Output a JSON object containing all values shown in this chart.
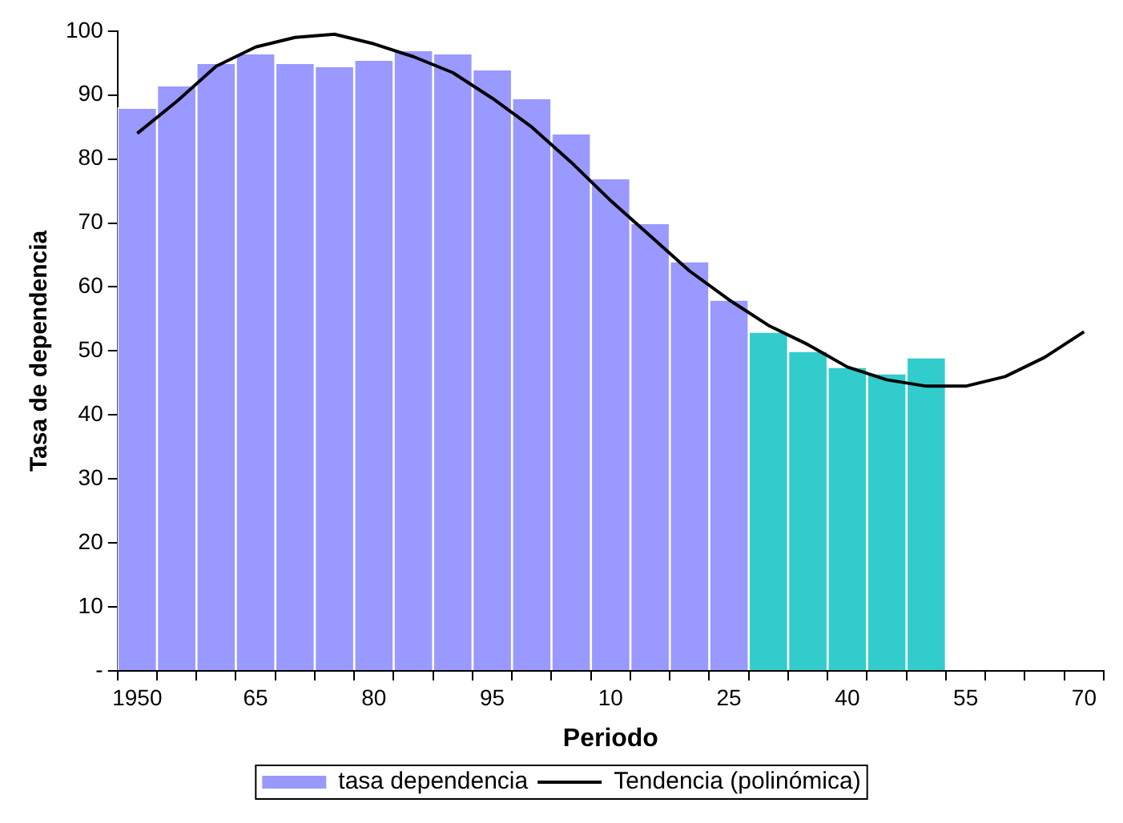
{
  "chart_data": {
    "type": "bar",
    "xlabel": "Periodo",
    "ylabel": "Tasa de dependencia",
    "categories": [
      "1950",
      null,
      null,
      "65",
      null,
      null,
      "80",
      null,
      null,
      "95",
      null,
      null,
      "10",
      null,
      null,
      "25",
      null,
      null,
      "40",
      null,
      null,
      "55",
      null,
      null,
      "70"
    ],
    "series": [
      {
        "name": "tasa dependencia",
        "color": "#9999ff",
        "colors": [
          "#9999ff",
          "#9999ff",
          "#9999ff",
          "#9999ff",
          "#9999ff",
          "#9999ff",
          "#9999ff",
          "#9999ff",
          "#9999ff",
          "#9999ff",
          "#9999ff",
          "#9999ff",
          "#9999ff",
          "#9999ff",
          "#9999ff",
          "#9999ff",
          "#33cccc",
          "#33cccc",
          "#33cccc",
          "#33cccc",
          "#33cccc",
          null,
          null,
          null,
          null
        ],
        "values": [
          88,
          91.5,
          95,
          96.5,
          95,
          94.5,
          95.5,
          97,
          96.5,
          94,
          89.5,
          84,
          77,
          70,
          64,
          58,
          53,
          50,
          47.5,
          46.5,
          49,
          null,
          null,
          null,
          null
        ]
      },
      {
        "name": "Tendencia (polinómica)",
        "type": "line",
        "color": "#000000",
        "marker": "none",
        "values": [
          84,
          89,
          94.5,
          97.5,
          99,
          99.5,
          98,
          96,
          93.5,
          89.5,
          85,
          79.5,
          73.5,
          68,
          62.5,
          58,
          54,
          51,
          47.5,
          45.5,
          44.5,
          44.5,
          46,
          49,
          53
        ]
      }
    ],
    "ylim": [
      0,
      100
    ],
    "yticks": [
      {
        "value": 0,
        "label": "-"
      },
      10,
      20,
      30,
      40,
      50,
      60,
      70,
      80,
      90,
      100
    ],
    "grid": false,
    "legend": "bottom"
  }
}
